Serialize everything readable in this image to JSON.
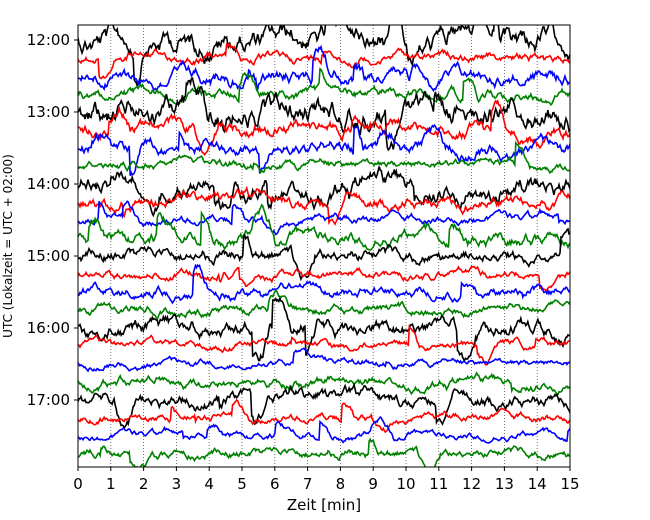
{
  "chart_data": {
    "type": "line",
    "title": "",
    "xlabel": "Zeit  [min]",
    "ylabel": "UTC (Lokalzeit = UTC + 02:00)",
    "xlim": [
      0,
      15
    ],
    "xticks": [
      "0",
      "1",
      "2",
      "3",
      "4",
      "5",
      "6",
      "7",
      "8",
      "9",
      "10",
      "11",
      "12",
      "13",
      "14",
      "15"
    ],
    "yticks": [
      "12:00",
      "13:00",
      "14:00",
      "15:00",
      "16:00",
      "17:00"
    ],
    "trace_interval_min": 15,
    "start_time": "12:00",
    "trace_count": 24,
    "colors": [
      "#000000",
      "#ff0000",
      "#0000ff",
      "#008000"
    ],
    "grid": "vertical dotted at each minute"
  }
}
